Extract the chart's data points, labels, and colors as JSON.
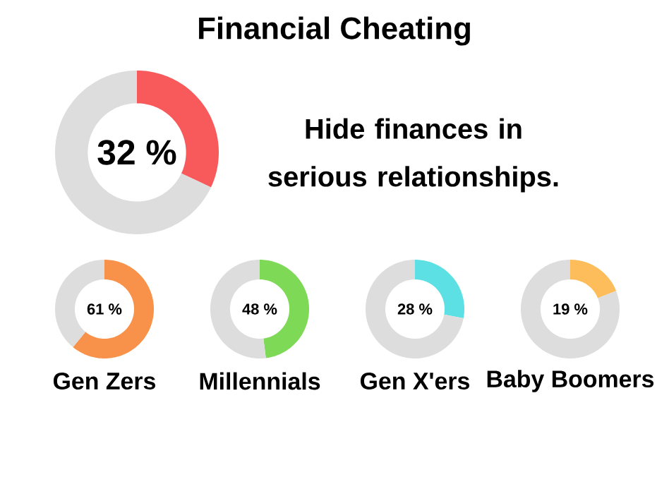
{
  "chart_data": [
    {
      "type": "donut",
      "title": "Financial Cheating",
      "categories": [
        null,
        null
      ],
      "values": [
        32,
        68
      ],
      "colors": [
        "#f85a5c",
        "#dddddd"
      ],
      "annotations": [
        "32 %",
        "Hide finances in serious relationships."
      ]
    },
    {
      "type": "donut",
      "title": "Gen Zers",
      "categories": [
        null,
        null
      ],
      "values": [
        61,
        39
      ],
      "colors": [
        "#f8924a",
        "#dddddd"
      ],
      "annotations": [
        "61 %"
      ]
    },
    {
      "type": "donut",
      "title": "Millennials",
      "categories": [
        null,
        null
      ],
      "values": [
        48,
        52
      ],
      "colors": [
        "#7dd956",
        "#dddddd"
      ],
      "annotations": [
        "48 %"
      ]
    },
    {
      "type": "donut",
      "title": "Gen X'ers",
      "categories": [
        null,
        null
      ],
      "values": [
        28,
        72
      ],
      "colors": [
        "#5ce0e4",
        "#dddddd"
      ],
      "annotations": [
        "28 %"
      ]
    },
    {
      "type": "donut",
      "title": "Baby Boomers",
      "categories": [
        null,
        null
      ],
      "values": [
        19,
        81
      ],
      "colors": [
        "#fdbd5a",
        "#dddddd"
      ],
      "annotations": [
        "19 %"
      ]
    }
  ]
}
